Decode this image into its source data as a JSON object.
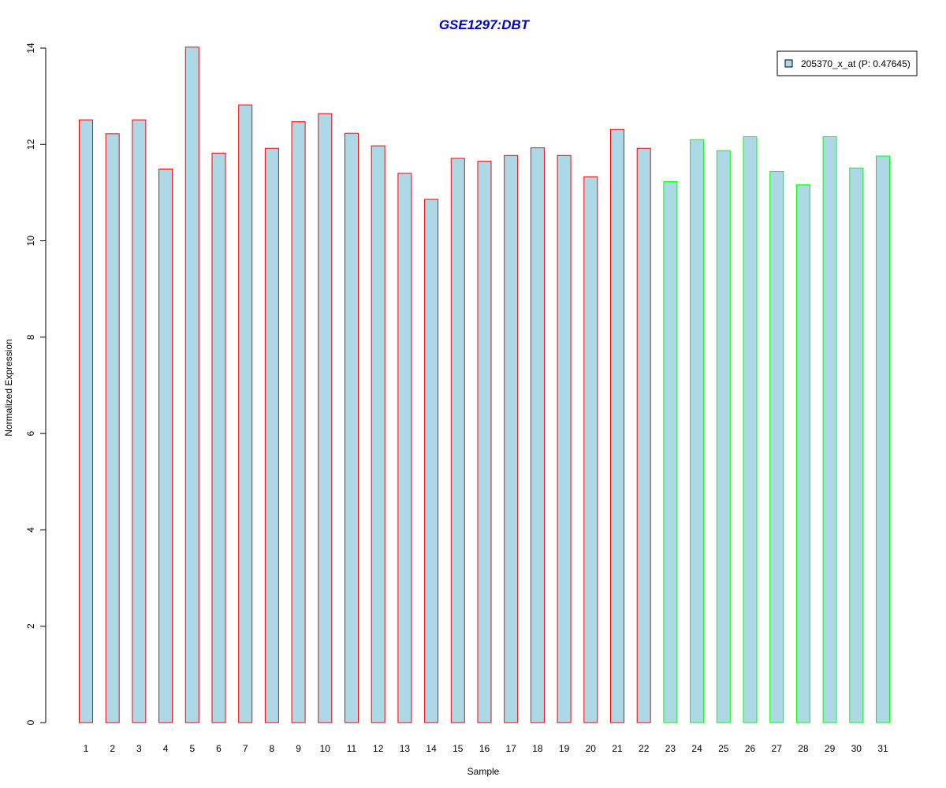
{
  "chart_data": {
    "type": "bar",
    "title": "GSE1297:DBT",
    "xlabel": "Sample",
    "ylabel": "Normalized Expression",
    "ylim": [
      0,
      14
    ],
    "yticks": [
      "0",
      "2",
      "4",
      "6",
      "8",
      "10",
      "12",
      "14"
    ],
    "categories": [
      "1",
      "2",
      "3",
      "4",
      "5",
      "6",
      "7",
      "8",
      "9",
      "10",
      "11",
      "12",
      "13",
      "14",
      "15",
      "16",
      "17",
      "18",
      "19",
      "20",
      "21",
      "22",
      "23",
      "24",
      "25",
      "26",
      "27",
      "28",
      "29",
      "30",
      "31"
    ],
    "series": [
      {
        "name": "205370_x_at (P: 0.47645)",
        "values": [
          12.51,
          12.22,
          12.51,
          11.49,
          14.02,
          11.82,
          12.82,
          11.92,
          12.47,
          12.64,
          12.23,
          11.97,
          11.4,
          10.86,
          11.71,
          11.65,
          11.77,
          11.93,
          11.77,
          11.33,
          12.31,
          11.92,
          11.23,
          12.1,
          11.87,
          12.16,
          11.44,
          11.16,
          12.16,
          11.51,
          11.76
        ]
      }
    ],
    "groups": [
      "red",
      "red",
      "red",
      "red",
      "red",
      "red",
      "red",
      "red",
      "red",
      "red",
      "red",
      "red",
      "red",
      "red",
      "red",
      "red",
      "red",
      "red",
      "red",
      "red",
      "red",
      "red",
      "green",
      "green",
      "green",
      "green",
      "green",
      "green",
      "green",
      "green",
      "green"
    ],
    "colors": {
      "fill": "#add8e6",
      "red": "#ff0000",
      "green": "#00ff00",
      "title": "#0000cc"
    },
    "legend": {
      "label": "205370_x_at (P: 0.47645)",
      "position": "top-right"
    },
    "grid": false
  }
}
